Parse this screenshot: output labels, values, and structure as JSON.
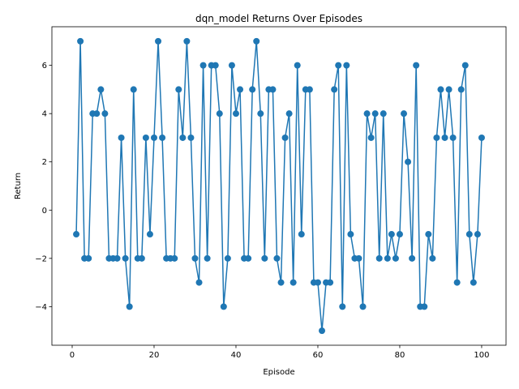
{
  "chart_data": {
    "type": "line",
    "title": "dqn_model Returns Over Episodes",
    "xlabel": "Episode",
    "ylabel": "Return",
    "xlim": [
      -4.95,
      105.95
    ],
    "ylim": [
      -5.6,
      7.6
    ],
    "xticks": [
      0,
      20,
      40,
      60,
      80,
      100
    ],
    "yticks": [
      -4,
      -2,
      0,
      2,
      4,
      6
    ],
    "grid": false,
    "color": "#1f77b4",
    "series": [
      {
        "x": [
          1,
          2,
          3,
          4,
          5,
          6,
          7,
          8,
          9,
          10,
          11,
          12,
          13,
          14,
          15,
          16,
          17,
          18,
          19,
          20,
          21,
          22,
          23,
          24,
          25,
          26,
          27,
          28,
          29,
          30,
          31,
          32,
          33,
          34,
          35,
          36,
          37,
          38,
          39,
          40,
          41,
          42,
          43,
          44,
          45,
          46,
          47,
          48,
          49,
          50,
          51,
          52,
          53,
          54,
          55,
          56,
          57,
          58,
          59,
          60,
          61,
          62,
          63,
          64,
          65,
          66,
          67,
          68,
          69,
          70,
          71,
          72,
          73,
          74,
          75,
          76,
          77,
          78,
          79,
          80,
          81,
          82,
          83,
          84,
          85,
          86,
          87,
          88,
          89,
          90,
          91,
          92,
          93,
          94,
          95,
          96,
          97,
          98,
          99,
          100
        ],
        "values": [
          -1,
          7,
          -2,
          -2,
          4,
          4,
          5,
          4,
          -2,
          -2,
          -2,
          3,
          -2,
          -4,
          5,
          -2,
          -2,
          3,
          -1,
          3,
          7,
          3,
          -2,
          -2,
          -2,
          5,
          3,
          7,
          3,
          -2,
          -3,
          6,
          -2,
          6,
          6,
          4,
          -4,
          -2,
          6,
          4,
          5,
          -2,
          -2,
          5,
          7,
          4,
          -2,
          5,
          5,
          -2,
          -3,
          3,
          4,
          -3,
          6,
          -1,
          5,
          5,
          -3,
          -3,
          -5,
          -3,
          -3,
          5,
          6,
          -4,
          6,
          -1,
          -2,
          -2,
          -4,
          4,
          3,
          4,
          -2,
          4,
          -2,
          -1,
          -2,
          -1,
          4,
          2,
          -2,
          6,
          -4,
          -4,
          -1,
          -2,
          3,
          5,
          3,
          5,
          3,
          -3,
          5,
          6,
          -1,
          -3,
          -1,
          3
        ]
      }
    ]
  }
}
